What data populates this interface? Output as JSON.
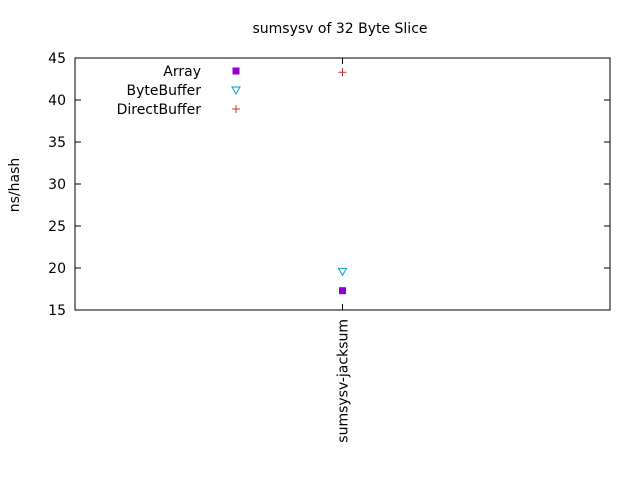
{
  "chart_data": {
    "type": "scatter",
    "title": "sumsysv of 32 Byte Slice",
    "ylabel": "ns/hash",
    "xlabel": "",
    "categories": [
      "sumsysv-jacksum"
    ],
    "ylim": [
      15,
      45
    ],
    "yticks": [
      15,
      20,
      25,
      30,
      35,
      40,
      45
    ],
    "grid": false,
    "legend_position": "top-left",
    "series": [
      {
        "name": "Array",
        "marker": "filled-square",
        "color": "#9400d3",
        "values": [
          17.3
        ]
      },
      {
        "name": "ByteBuffer",
        "marker": "open-triangle-down",
        "color": "#009ec8",
        "values": [
          19.6
        ]
      },
      {
        "name": "DirectBuffer",
        "marker": "plus",
        "color": "#c0392b",
        "values": [
          43.3
        ]
      }
    ]
  }
}
